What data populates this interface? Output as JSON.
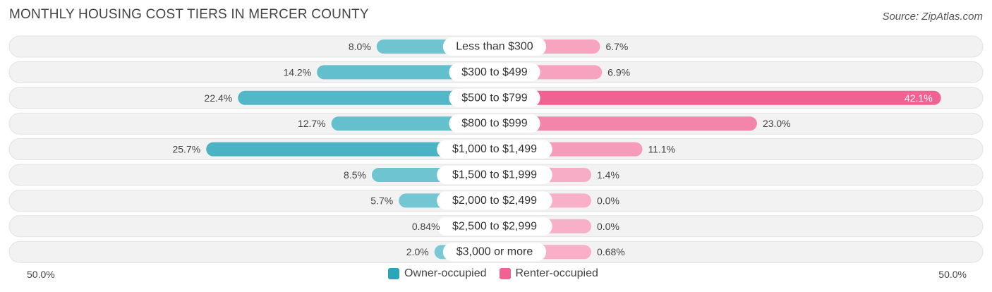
{
  "title": "MONTHLY HOUSING COST TIERS IN MERCER COUNTY",
  "source": "Source: ZipAtlas.com",
  "axis": {
    "left_label": "50.0%",
    "right_label": "50.0%"
  },
  "legend": {
    "owner": {
      "label": "Owner-occupied",
      "color": "#2aa6b8"
    },
    "renter": {
      "label": "Renter-occupied",
      "color": "#f06292"
    }
  },
  "chart_data": {
    "type": "bar",
    "orientation": "diverging-horizontal",
    "title": "MONTHLY HOUSING COST TIERS IN MERCER COUNTY",
    "xlim": [
      -50,
      50
    ],
    "categories": [
      "Less than $300",
      "$300 to $499",
      "$500 to $799",
      "$800 to $999",
      "$1,000 to $1,499",
      "$1,500 to $1,999",
      "$2,000 to $2,499",
      "$2,500 to $2,999",
      "$3,000 or more"
    ],
    "series": [
      {
        "name": "Owner-occupied",
        "values": [
          8.0,
          14.2,
          22.4,
          12.7,
          25.7,
          8.5,
          5.7,
          0.84,
          2.0
        ],
        "labels": [
          "8.0%",
          "14.2%",
          "22.4%",
          "12.7%",
          "25.7%",
          "8.5%",
          "5.7%",
          "0.84%",
          "2.0%"
        ]
      },
      {
        "name": "Renter-occupied",
        "values": [
          6.7,
          6.9,
          42.1,
          23.0,
          11.1,
          1.4,
          0.0,
          0.0,
          0.68
        ],
        "labels": [
          "6.7%",
          "6.9%",
          "42.1%",
          "23.0%",
          "11.1%",
          "1.4%",
          "0.0%",
          "0.0%",
          "0.68%"
        ]
      }
    ],
    "legend_position": "bottom-center"
  }
}
